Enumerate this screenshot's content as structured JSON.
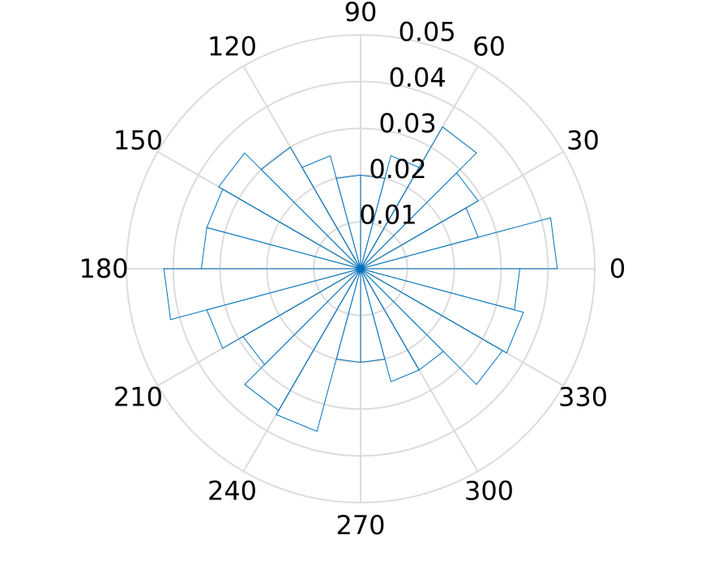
{
  "chart_data": {
    "type": "polar-histogram",
    "title": "",
    "bin_width_deg": 15,
    "bin_start_deg": [
      0,
      15,
      30,
      45,
      60,
      75,
      90,
      105,
      120,
      135,
      150,
      165,
      180,
      195,
      210,
      225,
      240,
      255,
      270,
      285,
      300,
      315,
      330,
      345
    ],
    "values": [
      0.042,
      0.026,
      0.029,
      0.035,
      0.025,
      0.02,
      0.02,
      0.025,
      0.03,
      0.035,
      0.034,
      0.034,
      0.042,
      0.034,
      0.029,
      0.035,
      0.036,
      0.02,
      0.02,
      0.025,
      0.025,
      0.035,
      0.036,
      0.034
    ],
    "r_ticks": [
      "0.01",
      "0.02",
      "0.03",
      "0.04",
      "0.05"
    ],
    "r_tick_values": [
      0.01,
      0.02,
      0.03,
      0.04,
      0.05
    ],
    "rlim": [
      0,
      0.05
    ],
    "theta_ticks": [
      "0",
      "30",
      "60",
      "90",
      "120",
      "150",
      "180",
      "210",
      "240",
      "270",
      "300",
      "330"
    ],
    "theta_tick_values": [
      0,
      30,
      60,
      90,
      120,
      150,
      180,
      210,
      240,
      270,
      300,
      330
    ],
    "grid": true,
    "colors": {
      "bars": "#0072bd",
      "grid": "#dcdcdc",
      "text": "#000000"
    }
  }
}
